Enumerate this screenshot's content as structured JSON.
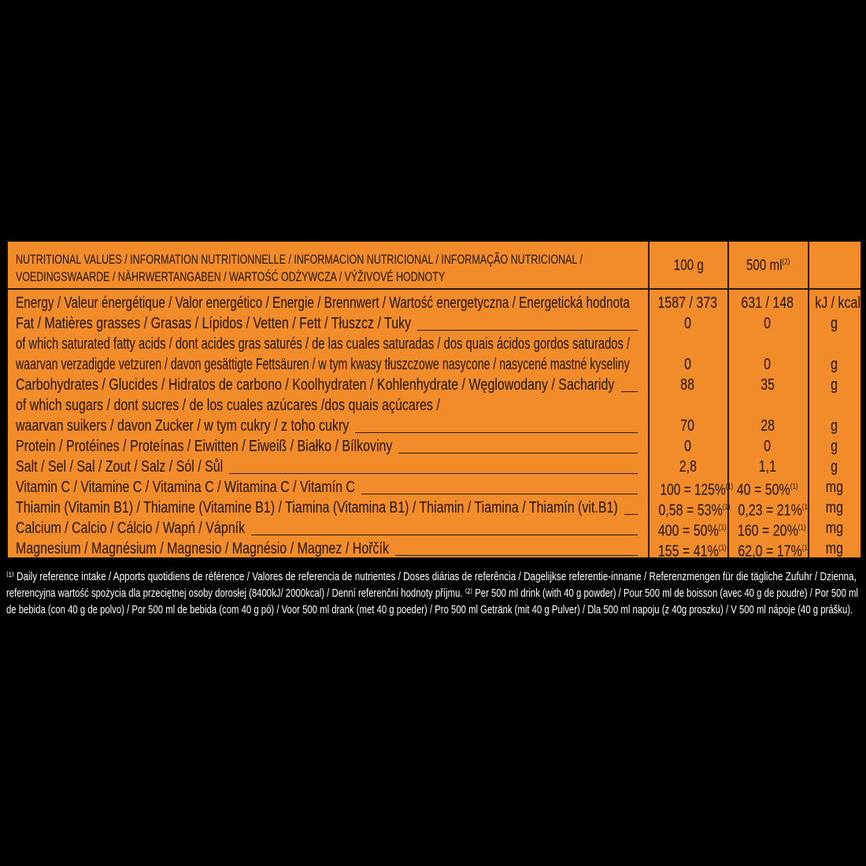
{
  "header": {
    "title_lines": [
      "NUTRITIONAL VALUES / INFORMATION NUTRITIONNELLE / INFORMACION NUTRICIONAL / INFORMAÇÃO NUTRICIONAL /",
      "VOEDINGSWAARDE / NÄHRWERTANGABEN / WARTOŚĆ ODŻYWCZA / VÝŽIVOVÉ HODNOTY"
    ],
    "col_100g": "100 g",
    "col_500ml": "500 ml",
    "col_500ml_note": "(2)"
  },
  "rows": [
    {
      "label": "Energy / Valeur énergétique / Valor energético / Energie / Brennwert / Wartość energetyczna / Energetická hodnota",
      "filler": false,
      "v100": "1587 / 373",
      "v500": "631 / 148",
      "unit": "kJ / kcal"
    },
    {
      "label": "Fat / Matières grasses / Grasas / Lípidos / Vetten / Fett / Tłuszcz / Tuky",
      "filler": true,
      "v100": "0",
      "v500": "0",
      "unit": "g"
    },
    {
      "label": "of which saturated fatty acids / dont acides gras saturés / de las cuales saturadas / dos quais ácidos gordos saturados /",
      "filler": false
    },
    {
      "label": "waarvan verzadigde vetzuren / davon gesättigte Fettsäuren / w tym kwasy tłuszczowe nasycone / nasycené mastné kyseliny",
      "filler": false,
      "v100": "0",
      "v500": "0",
      "unit": "g"
    },
    {
      "label": "Carbohydrates / Glucides / Hidratos de carbono / Koolhydraten / Kohlenhydrate / Węglowodany / Sacharidy",
      "filler": true,
      "v100": "88",
      "v500": "35",
      "unit": "g"
    },
    {
      "label": "of which sugars / dont sucres / de los cuales azúcares /dos quais açúcares /",
      "filler": false
    },
    {
      "label": "waarvan suikers / davon Zucker  / w tym cukry / z toho cukry",
      "filler": true,
      "v100": "70",
      "v500": "28",
      "unit": "g"
    },
    {
      "label": "Protein / Protéines / Proteínas / Eiwitten / Eiweiß / Białko / Bílkoviny",
      "filler": true,
      "v100": "0",
      "v500": "0",
      "unit": "g"
    },
    {
      "label": "Salt / Sel / Sal / Zout / Salz / Sól / Sůl",
      "filler": true,
      "v100": "2,8",
      "v500": "1,1",
      "unit": "g"
    },
    {
      "label": "Vitamin C / Vitamine C / Vitamina C / Witamina C / Vitamín C",
      "filler": true,
      "v100": "100 = 125%",
      "v500": "40 = 50%",
      "note": "(1)",
      "unit": "mg"
    },
    {
      "label": "Thiamin (Vitamin B1) / Thiamine (Vitamine B1) / Tiamina (Vitamina B1) / Thiamin / Tiamina / Thiamín (vit.B1)",
      "filler": true,
      "v100": "0,58 = 53%",
      "v500": "0,23 = 21%",
      "note": "(1)",
      "unit": "mg"
    },
    {
      "label": "Calcium / Calcio / Cálcio / Wapń / Vápník",
      "filler": true,
      "v100": "400 = 50%",
      "v500": "160 = 20%",
      "note": "(1)",
      "unit": "mg"
    },
    {
      "label": "Magnesium / Magnésium / Magnesio / Magnésio / Magnez / Hořčík",
      "filler": true,
      "v100": "155 = 41%",
      "v500": "62,0 = 17%",
      "note": "(1)",
      "unit": "mg"
    }
  ],
  "footnotes": {
    "lines": [
      "⁽¹⁾ Daily reference intake / Apports quotidiens de référence / Valores de referencia de nutrientes / Doses diárias de referência / Dagelijkse referentie-inname / Referenzmengen für die tägliche Zufuhr / Dzienna,",
      "referencyjna wartość spożycia dla przeciętnej osoby dorosłej (8400kJ/ 2000kcal) / Denní referenční hodnoty příjmu. ⁽²⁾ Per 500 ml drink (with 40 g powder) / Pour 500 ml de boisson (avec 40 g de poudre) / Por 500 ml",
      "de bebida (con 40 g de polvo) / Por 500 ml de bebida (com 40 g pó) / Voor 500 ml drank (met 40 g poeder) / Pro 500 ml Getränk (mit 40 g Pulver) / Dla 500 ml napoju (z 40g proszku) / V 500 ml nápoje (40 g prášku)."
    ]
  },
  "colors": {
    "panel": "#f28b2a",
    "background": "#000000",
    "text": "#1e1408",
    "footnote_text": "#ffffff"
  }
}
